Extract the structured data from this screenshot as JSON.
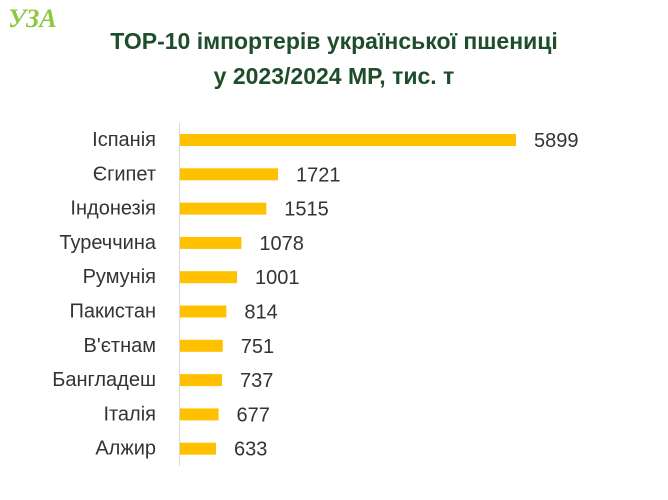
{
  "logo": "УЗА",
  "chart_data": {
    "type": "bar",
    "orientation": "horizontal",
    "title": "TOP-10 імпортерів української пшениці у 2023/2024 МР, тис. т",
    "categories": [
      "Іспанія",
      "Єгипет",
      "Індонезія",
      "Туреччина",
      "Румунія",
      "Пакистан",
      "В'єтнам",
      "Бангладеш",
      "Італія",
      "Алжир"
    ],
    "values": [
      5899,
      1721,
      1515,
      1078,
      1001,
      814,
      751,
      737,
      677,
      633
    ],
    "color": "#ffc000"
  }
}
